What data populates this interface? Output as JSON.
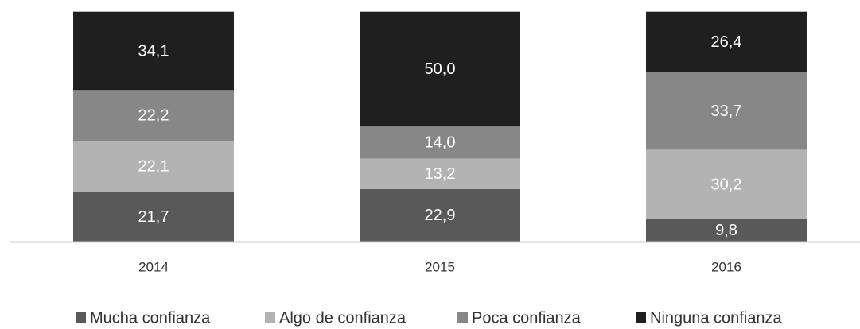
{
  "chart_data": {
    "type": "stacked_bar",
    "categories": [
      "2014",
      "2015",
      "2016"
    ],
    "series": [
      {
        "name": "Mucha confianza",
        "color": "#595959",
        "values": [
          21.7,
          22.9,
          9.8
        ],
        "value_labels": [
          "21,7",
          "22,9",
          "9,8"
        ]
      },
      {
        "name": "Algo de confianza",
        "color": "#b3b3b3",
        "values": [
          22.1,
          13.2,
          30.2
        ],
        "value_labels": [
          "22,1",
          "13,2",
          "30,2"
        ]
      },
      {
        "name": "Poca confianza",
        "color": "#878787",
        "values": [
          22.2,
          14.0,
          33.7
        ],
        "value_labels": [
          "22,2",
          "14,0",
          "33,7"
        ]
      },
      {
        "name": "Ninguna confianza",
        "color": "#1f1f1f",
        "values": [
          34.1,
          50.0,
          26.4
        ],
        "value_labels": [
          "34,1",
          "50,0",
          "26,4"
        ]
      }
    ],
    "ylim": [
      0,
      100
    ]
  }
}
